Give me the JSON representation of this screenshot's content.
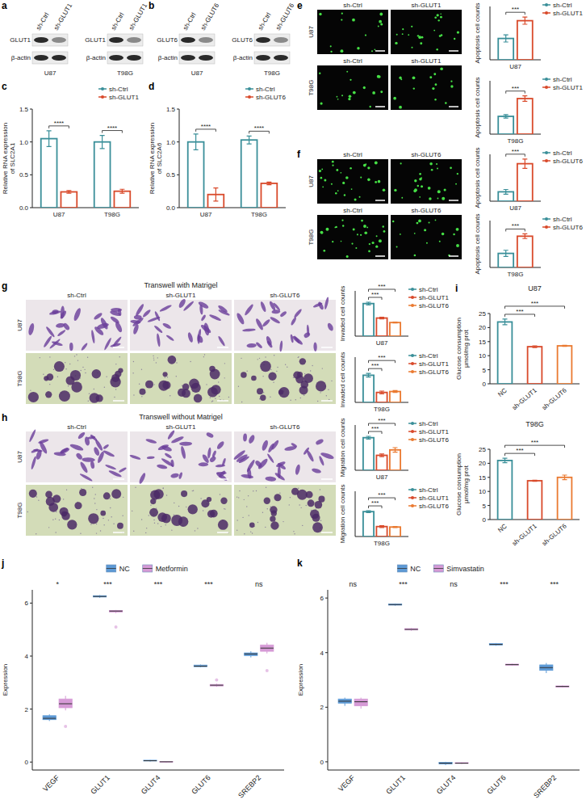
{
  "blots": [
    {
      "panel": "a",
      "groups": [
        "sh-Ctrl",
        "sh-GLUT1"
      ],
      "rows": [
        "GLUT1",
        "β-actin"
      ],
      "cell_lines": [
        "U87",
        "T98G"
      ]
    },
    {
      "panel": "b",
      "groups": [
        "sh-Ctrl",
        "sh-GLUT6"
      ],
      "rows": [
        "GLUT6",
        "β-actin"
      ],
      "cell_lines": [
        "U87",
        "T98G"
      ]
    }
  ],
  "micrographs": [
    {
      "panel": "e",
      "kind": "fluorescence",
      "groups": [
        "sh-Ctrl",
        "sh-GLUT1"
      ],
      "cell_lines": [
        "U87",
        "T98G"
      ]
    },
    {
      "panel": "f",
      "kind": "fluorescence",
      "groups": [
        "sh-Ctrl",
        "sh-GLUT6"
      ],
      "cell_lines": [
        "U87",
        "T98G"
      ]
    },
    {
      "panel": "g",
      "kind": "transwell",
      "title": "Transwell with Matrigel",
      "groups": [
        "sh-Ctrl",
        "sh-GLUT1",
        "sh-GLUT6"
      ],
      "cell_lines": [
        "U87",
        "T98G"
      ]
    },
    {
      "panel": "h",
      "kind": "transwell",
      "title": "Transwell without Matrigel",
      "groups": [
        "sh-Ctrl",
        "sh-GLUT1",
        "sh-GLUT6"
      ],
      "cell_lines": [
        "U87",
        "T98G"
      ]
    }
  ],
  "chart_data": [
    {
      "panel": "c",
      "type": "bar",
      "y_label": [
        "Relative RNA expression",
        "of SLC2A1"
      ],
      "categories": [
        "U87",
        "T98G"
      ],
      "series": [
        {
          "name": "sh-Ctrl",
          "color": "#3a8f99",
          "values": [
            1.05,
            1.0
          ],
          "errors": [
            0.12,
            0.1
          ]
        },
        {
          "name": "sh-GLUT1",
          "color": "#d94a2b",
          "values": [
            0.24,
            0.25
          ],
          "errors": [
            0.02,
            0.03
          ]
        }
      ],
      "ylim": [
        0,
        1.5
      ],
      "yticks": [
        {
          "value": 0,
          "label": "0.0"
        },
        0.5,
        {
          "value": 1,
          "label": "1.0"
        },
        1.5
      ],
      "legend": "top-right",
      "significance": [
        "****",
        "****"
      ]
    },
    {
      "panel": "d",
      "type": "bar",
      "y_label": [
        "Relative RNA expression",
        "of SLC2A6"
      ],
      "categories": [
        "U87",
        "T98G"
      ],
      "series": [
        {
          "name": "sh-Ctrl",
          "color": "#3a8f99",
          "values": [
            1.0,
            1.03
          ],
          "errors": [
            0.12,
            0.06
          ]
        },
        {
          "name": "sh-GLUT6",
          "color": "#d94a2b",
          "values": [
            0.2,
            0.37
          ],
          "errors": [
            0.1,
            0.02
          ]
        }
      ],
      "ylim": [
        0,
        1.5
      ],
      "yticks": [
        {
          "value": 0,
          "label": "0.0"
        },
        0.5,
        {
          "value": 1,
          "label": "1.0"
        },
        1.5
      ],
      "legend": "top-right",
      "significance": [
        "****",
        "****"
      ]
    },
    {
      "type": "bar",
      "y_label": "Apoptosis cell counts",
      "categories": [
        "U87"
      ],
      "series": [
        {
          "name": "sh-Ctrl",
          "color": "#3a8f99",
          "values": [
            12
          ],
          "errors": [
            2
          ]
        },
        {
          "name": "sh-GLUT1",
          "color": "#d94a2b",
          "values": [
            22
          ],
          "errors": [
            2
          ]
        }
      ],
      "ylim": [
        0,
        30
      ],
      "tick_labels": "x",
      "legend": "top-right",
      "significance": [
        "***"
      ]
    },
    {
      "type": "bar",
      "y_label": "Apoptosis cell counts",
      "categories": [
        "T98G"
      ],
      "series": [
        {
          "name": "sh-Ctrl",
          "color": "#3a8f99",
          "values": [
            10
          ],
          "errors": [
            1
          ]
        },
        {
          "name": "sh-GLUT1",
          "color": "#d94a2b",
          "values": [
            20
          ],
          "errors": [
            1.5
          ]
        }
      ],
      "ylim": [
        0,
        30
      ],
      "tick_labels": "x",
      "legend": "top-right",
      "significance": [
        "***"
      ]
    },
    {
      "type": "bar",
      "y_label": "Apoptosis cell counts",
      "categories": [
        "U87"
      ],
      "series": [
        {
          "name": "sh-Ctrl",
          "color": "#3a8f99",
          "values": [
            6
          ],
          "errors": [
            1.5
          ]
        },
        {
          "name": "sh-GLUT6",
          "color": "#d94a2b",
          "values": [
            24
          ],
          "errors": [
            3
          ]
        }
      ],
      "ylim": [
        0,
        30
      ],
      "tick_labels": "x",
      "legend": "top-right",
      "significance": [
        "***"
      ]
    },
    {
      "type": "bar",
      "y_label": "Apoptosis cell counts",
      "categories": [
        "T98G"
      ],
      "series": [
        {
          "name": "sh-Ctrl",
          "color": "#3a8f99",
          "values": [
            9
          ],
          "errors": [
            2
          ]
        },
        {
          "name": "sh-GLUT6",
          "color": "#d94a2b",
          "values": [
            20
          ],
          "errors": [
            1.5
          ]
        }
      ],
      "ylim": [
        0,
        30
      ],
      "tick_labels": "x",
      "legend": "top-right",
      "significance": [
        "***"
      ]
    },
    {
      "type": "bar",
      "y_label": "Invaded cell counts",
      "categories": [
        "U87"
      ],
      "series": [
        {
          "name": "sh-Ctrl",
          "color": "#3a8f99",
          "values": [
            72
          ],
          "errors": [
            3
          ]
        },
        {
          "name": "sh-GLUT1",
          "color": "#d94a2b",
          "values": [
            40
          ],
          "errors": [
            2
          ]
        },
        {
          "name": "sh-GLUT6",
          "color": "#ea7a31",
          "values": [
            30
          ],
          "errors": [
            1
          ]
        }
      ],
      "ylim": [
        0,
        100
      ],
      "tick_labels": "x",
      "legend": "top-right",
      "significance": [
        "***",
        "***"
      ]
    },
    {
      "type": "bar",
      "y_label": "Invaded cell counts",
      "categories": [
        "T98G"
      ],
      "series": [
        {
          "name": "sh-Ctrl",
          "color": "#3a8f99",
          "values": [
            60
          ],
          "errors": [
            4
          ]
        },
        {
          "name": "sh-GLUT1",
          "color": "#d94a2b",
          "values": [
            22
          ],
          "errors": [
            3
          ]
        },
        {
          "name": "sh-GLUT6",
          "color": "#ea7a31",
          "values": [
            24
          ],
          "errors": [
            2
          ]
        }
      ],
      "ylim": [
        0,
        100
      ],
      "tick_labels": "x",
      "legend": "top-right",
      "significance": [
        "***",
        "***"
      ]
    },
    {
      "type": "bar",
      "y_label": "Migration cell counts",
      "categories": [
        "U87"
      ],
      "series": [
        {
          "name": "sh-Ctrl",
          "color": "#3a8f99",
          "values": [
            72
          ],
          "errors": [
            3
          ]
        },
        {
          "name": "sh-GLUT1",
          "color": "#d94a2b",
          "values": [
            33
          ],
          "errors": [
            3
          ]
        },
        {
          "name": "sh-GLUT6",
          "color": "#ea7a31",
          "values": [
            45
          ],
          "errors": [
            5
          ]
        }
      ],
      "ylim": [
        0,
        100
      ],
      "tick_labels": "x",
      "legend": "top-right",
      "significance": [
        "***",
        "***"
      ]
    },
    {
      "type": "bar",
      "y_label": "Migration cell counts",
      "categories": [
        "T98G"
      ],
      "series": [
        {
          "name": "sh-Ctrl",
          "color": "#3a8f99",
          "values": [
            55
          ],
          "errors": [
            2
          ]
        },
        {
          "name": "sh-GLUT1",
          "color": "#d94a2b",
          "values": [
            22
          ],
          "errors": [
            2
          ]
        },
        {
          "name": "sh-GLUT6",
          "color": "#ea7a31",
          "values": [
            21
          ],
          "errors": [
            1
          ]
        }
      ],
      "ylim": [
        0,
        100
      ],
      "tick_labels": "x",
      "legend": "top-right",
      "significance": [
        "***",
        "***"
      ]
    },
    {
      "panel": "i",
      "type": "bar",
      "title": "U87",
      "y_label": [
        "Glucose consumption",
        "μmol/mg prot"
      ],
      "categories": [
        "NC",
        "sh-GLUT1",
        "sh-GLUT6"
      ],
      "values": [
        22,
        13.2,
        13.5
      ],
      "errors": [
        1,
        0.3,
        0.2
      ],
      "colors": [
        "#3a8f99",
        "#d94a2b",
        "#ea7a31"
      ],
      "ylim": [
        0,
        25
      ],
      "yticks": [
        0,
        5,
        10,
        15,
        20,
        25
      ],
      "significance": [
        "***",
        "***"
      ]
    },
    {
      "type": "bar",
      "title": "T98G",
      "y_label": [
        "Glucose consumption",
        "μmol/mg prot"
      ],
      "categories": [
        "NC",
        "sh-GLUT1",
        "sh-GLUT6"
      ],
      "values": [
        21,
        13.8,
        15
      ],
      "errors": [
        0.8,
        0.2,
        0.8
      ],
      "colors": [
        "#3a8f99",
        "#d94a2b",
        "#ea7a31"
      ],
      "ylim": [
        0,
        25
      ],
      "yticks": [
        0,
        5,
        10,
        15,
        20,
        25
      ],
      "significance": [
        "***",
        "***"
      ]
    },
    {
      "panel": "j",
      "type": "box",
      "y_label": "Expression",
      "categories": [
        "VEGF",
        "GLUT1",
        "GLUT4",
        "GLUT6",
        "SREBP2"
      ],
      "series": [
        {
          "name": "NC",
          "color": "#5d9ad6",
          "boxes": [
            {
              "min": 1.55,
              "q1": 1.6,
              "median": 1.65,
              "q3": 1.75,
              "max": 1.8,
              "outliers": []
            },
            {
              "min": 6.2,
              "q1": 6.23,
              "median": 6.25,
              "q3": 6.28,
              "max": 6.3,
              "outliers": []
            },
            {
              "min": 0.02,
              "q1": 0.04,
              "median": 0.05,
              "q3": 0.07,
              "max": 0.08,
              "outliers": []
            },
            {
              "min": 3.58,
              "q1": 3.6,
              "median": 3.62,
              "q3": 3.66,
              "max": 3.68,
              "outliers": []
            },
            {
              "min": 3.95,
              "q1": 4.02,
              "median": 4.08,
              "q3": 4.12,
              "max": 4.18,
              "outliers": []
            }
          ]
        },
        {
          "name": "Metformin",
          "color": "#d69ad6",
          "boxes": [
            {
              "min": 1.95,
              "q1": 2.05,
              "median": 2.2,
              "q3": 2.38,
              "max": 2.5,
              "outliers": [
                1.35
              ]
            },
            {
              "min": 5.62,
              "q1": 5.66,
              "median": 5.7,
              "q3": 5.72,
              "max": 5.74,
              "outliers": [
                5.1
              ]
            },
            {
              "min": -0.02,
              "q1": 0.0,
              "median": 0.01,
              "q3": 0.02,
              "max": 0.03,
              "outliers": []
            },
            {
              "min": 2.84,
              "q1": 2.87,
              "median": 2.9,
              "q3": 2.93,
              "max": 2.96,
              "outliers": [
                3.1
              ]
            },
            {
              "min": 4.1,
              "q1": 4.18,
              "median": 4.3,
              "q3": 4.42,
              "max": 4.5,
              "outliers": [
                3.45
              ]
            }
          ]
        }
      ],
      "ylim": [
        -0.3,
        6.5
      ],
      "yticks": [
        0,
        2,
        4,
        6
      ],
      "legend": "top",
      "significance": [
        "*",
        "***",
        "***",
        "***",
        "ns"
      ]
    },
    {
      "panel": "k",
      "type": "box",
      "y_label": "Expression",
      "categories": [
        "VEGF",
        "GLUT1",
        "GLUT4",
        "GLUT6",
        "SREBP2"
      ],
      "series": [
        {
          "name": "NC",
          "color": "#5d9ad6",
          "boxes": [
            {
              "min": 2.05,
              "q1": 2.15,
              "median": 2.22,
              "q3": 2.3,
              "max": 2.35,
              "outliers": []
            },
            {
              "min": 5.72,
              "q1": 5.74,
              "median": 5.76,
              "q3": 5.78,
              "max": 5.8,
              "outliers": []
            },
            {
              "min": -0.12,
              "q1": -0.08,
              "median": -0.05,
              "q3": -0.02,
              "max": 0.0,
              "outliers": []
            },
            {
              "min": 4.25,
              "q1": 4.28,
              "median": 4.3,
              "q3": 4.33,
              "max": 4.35,
              "outliers": []
            },
            {
              "min": 3.25,
              "q1": 3.35,
              "median": 3.45,
              "q3": 3.55,
              "max": 3.62,
              "outliers": []
            }
          ]
        },
        {
          "name": "Simvastatin",
          "color": "#d69ad6",
          "boxes": [
            {
              "min": 1.95,
              "q1": 2.05,
              "median": 2.2,
              "q3": 2.3,
              "max": 2.35,
              "outliers": []
            },
            {
              "min": 4.8,
              "q1": 4.83,
              "median": 4.85,
              "q3": 4.88,
              "max": 4.9,
              "outliers": []
            },
            {
              "min": -0.08,
              "q1": -0.06,
              "median": -0.05,
              "q3": -0.03,
              "max": -0.02,
              "outliers": []
            },
            {
              "min": 3.52,
              "q1": 3.54,
              "median": 3.56,
              "q3": 3.58,
              "max": 3.6,
              "outliers": []
            },
            {
              "min": 2.72,
              "q1": 2.74,
              "median": 2.76,
              "q3": 2.78,
              "max": 2.8,
              "outliers": []
            }
          ]
        }
      ],
      "ylim": [
        -0.3,
        6.3
      ],
      "yticks": [
        0,
        2,
        4,
        6
      ],
      "legend": "top",
      "significance": [
        "ns",
        "***",
        "ns",
        "***",
        "***"
      ]
    }
  ]
}
